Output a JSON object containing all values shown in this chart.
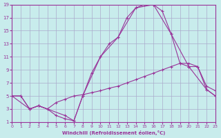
{
  "xlabel": "Windchill (Refroidissement éolien,°C)",
  "background_color": "#c8ecec",
  "grid_color": "#aaaacc",
  "line_color": "#993399",
  "xlim": [
    0,
    23
  ],
  "ylim": [
    1,
    19
  ],
  "xticks": [
    0,
    1,
    2,
    3,
    4,
    5,
    6,
    7,
    8,
    9,
    10,
    11,
    12,
    13,
    14,
    15,
    16,
    17,
    18,
    19,
    20,
    21,
    22,
    23
  ],
  "yticks": [
    1,
    3,
    5,
    7,
    9,
    11,
    13,
    15,
    17,
    19
  ],
  "curve1_x": [
    0,
    1,
    2,
    3,
    4,
    5,
    6,
    7,
    8,
    9,
    10,
    11,
    12,
    13,
    14,
    15,
    16,
    17,
    18,
    19,
    20,
    21,
    22,
    23
  ],
  "curve1_y": [
    5,
    5,
    3,
    3.5,
    3,
    2,
    1.5,
    1.2,
    5,
    8.5,
    11,
    13,
    14,
    17,
    18.5,
    19,
    19,
    18,
    14.5,
    10,
    9.5,
    9.5,
    6,
    5
  ],
  "curve2_x": [
    0,
    1,
    2,
    3,
    4,
    5,
    6,
    7,
    8,
    9,
    10,
    11,
    12,
    13,
    14,
    15,
    16,
    17,
    18,
    19,
    20,
    21,
    22,
    23
  ],
  "curve2_y": [
    5,
    5,
    3,
    3.5,
    3,
    4,
    4.5,
    5,
    5.2,
    5.5,
    5.8,
    6.2,
    6.5,
    7,
    7.5,
    8,
    8.5,
    9,
    9.5,
    10,
    10,
    9.5,
    6.5,
    5.8
  ],
  "curve3_x": [
    0,
    2,
    3,
    6,
    7,
    8,
    10,
    12,
    14,
    16,
    18,
    20,
    22,
    23
  ],
  "curve3_y": [
    5,
    3,
    3.5,
    2,
    1.2,
    5,
    11,
    14,
    18.5,
    19,
    14.5,
    9.5,
    6,
    5
  ]
}
